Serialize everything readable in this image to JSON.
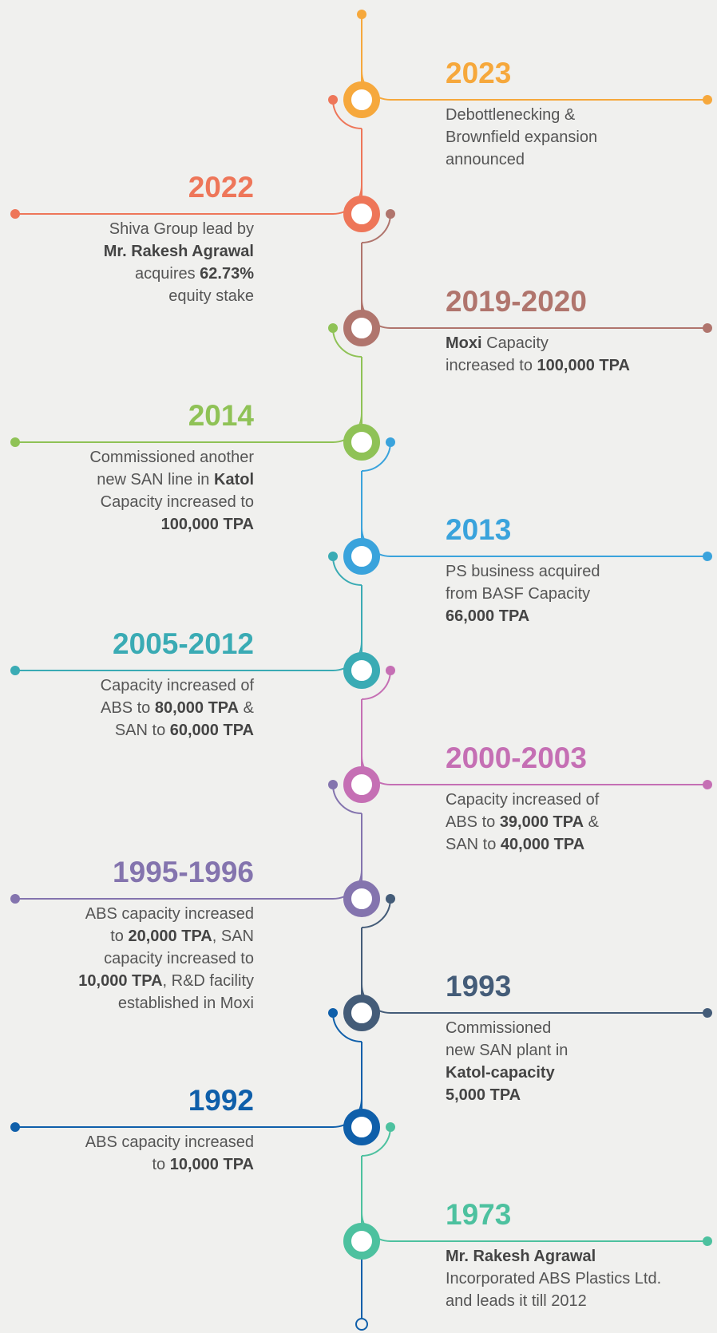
{
  "events": [
    {
      "year": "2023",
      "side": "right",
      "color": "#f6a83c",
      "lines": [
        [
          "Debottlenecking &"
        ],
        [
          "Brownfield expansion"
        ],
        [
          "announced"
        ]
      ]
    },
    {
      "year": "2022",
      "side": "left",
      "color": "#ee7659",
      "lines": [
        [
          "Shiva Group lead by"
        ],
        [
          {
            "text": "Mr. Rakesh Agrawal",
            "bold": true
          }
        ],
        [
          "acquires ",
          {
            "text": "62.73%",
            "bold": true
          }
        ],
        [
          "equity stake"
        ]
      ]
    },
    {
      "year": "2019-2020",
      "side": "right",
      "color": "#b0756d",
      "lines": [
        [
          {
            "text": "Moxi",
            "bold": true
          },
          " Capacity"
        ],
        [
          "increased to ",
          {
            "text": "100,000 TPA",
            "bold": true
          }
        ]
      ]
    },
    {
      "year": "2014",
      "side": "left",
      "color": "#8fc256",
      "lines": [
        [
          "Commissioned another"
        ],
        [
          "new SAN line in ",
          {
            "text": "Katol",
            "bold": true
          }
        ],
        [
          "Capacity increased to"
        ],
        [
          {
            "text": "100,000 TPA",
            "bold": true
          }
        ]
      ]
    },
    {
      "year": "2013",
      "side": "right",
      "color": "#3aa3dc",
      "lines": [
        [
          "PS business acquired"
        ],
        [
          "from BASF Capacity"
        ],
        [
          {
            "text": "66,000 TPA",
            "bold": true
          }
        ]
      ]
    },
    {
      "year": "2005-2012",
      "side": "left",
      "color": "#3aabb4",
      "lines": [
        [
          "Capacity increased of"
        ],
        [
          "ABS to ",
          {
            "text": "80,000 TPA",
            "bold": true
          },
          " &"
        ],
        [
          "SAN to ",
          {
            "text": "60,000 TPA",
            "bold": true
          }
        ]
      ]
    },
    {
      "year": "2000-2003",
      "side": "right",
      "color": "#c56fb4",
      "lines": [
        [
          "Capacity increased of"
        ],
        [
          "ABS to ",
          {
            "text": "39,000 TPA",
            "bold": true
          },
          " &"
        ],
        [
          "SAN to ",
          {
            "text": "40,000 TPA",
            "bold": true
          }
        ]
      ]
    },
    {
      "year": "1995-1996",
      "side": "left",
      "color": "#8474ae",
      "lines": [
        [
          "ABS capacity increased"
        ],
        [
          "to ",
          {
            "text": "20,000 TPA",
            "bold": true
          },
          ", SAN"
        ],
        [
          "capacity increased to"
        ],
        [
          {
            "text": "10,000 TPA",
            "bold": true
          },
          ", R&D facility"
        ],
        [
          "established in Moxi"
        ]
      ]
    },
    {
      "year": "1993",
      "side": "right",
      "color": "#445c78",
      "lines": [
        [
          "Commissioned"
        ],
        [
          "new SAN plant in"
        ],
        [
          {
            "text": "Katol-capacity",
            "bold": true
          }
        ],
        [
          {
            "text": "5,000 TPA",
            "bold": true
          }
        ]
      ]
    },
    {
      "year": "1992",
      "side": "left",
      "color": "#0f5faa",
      "lines": [
        [
          "ABS capacity increased"
        ],
        [
          "to ",
          {
            "text": "10,000 TPA",
            "bold": true
          }
        ]
      ]
    },
    {
      "year": "1973",
      "side": "right",
      "color": "#4dc19f",
      "lines": [
        [
          {
            "text": "Mr. Rakesh Agrawal",
            "bold": true
          }
        ],
        [
          "Incorporated ABS Plastics Ltd."
        ],
        [
          "and leads it till 2012"
        ]
      ]
    }
  ]
}
